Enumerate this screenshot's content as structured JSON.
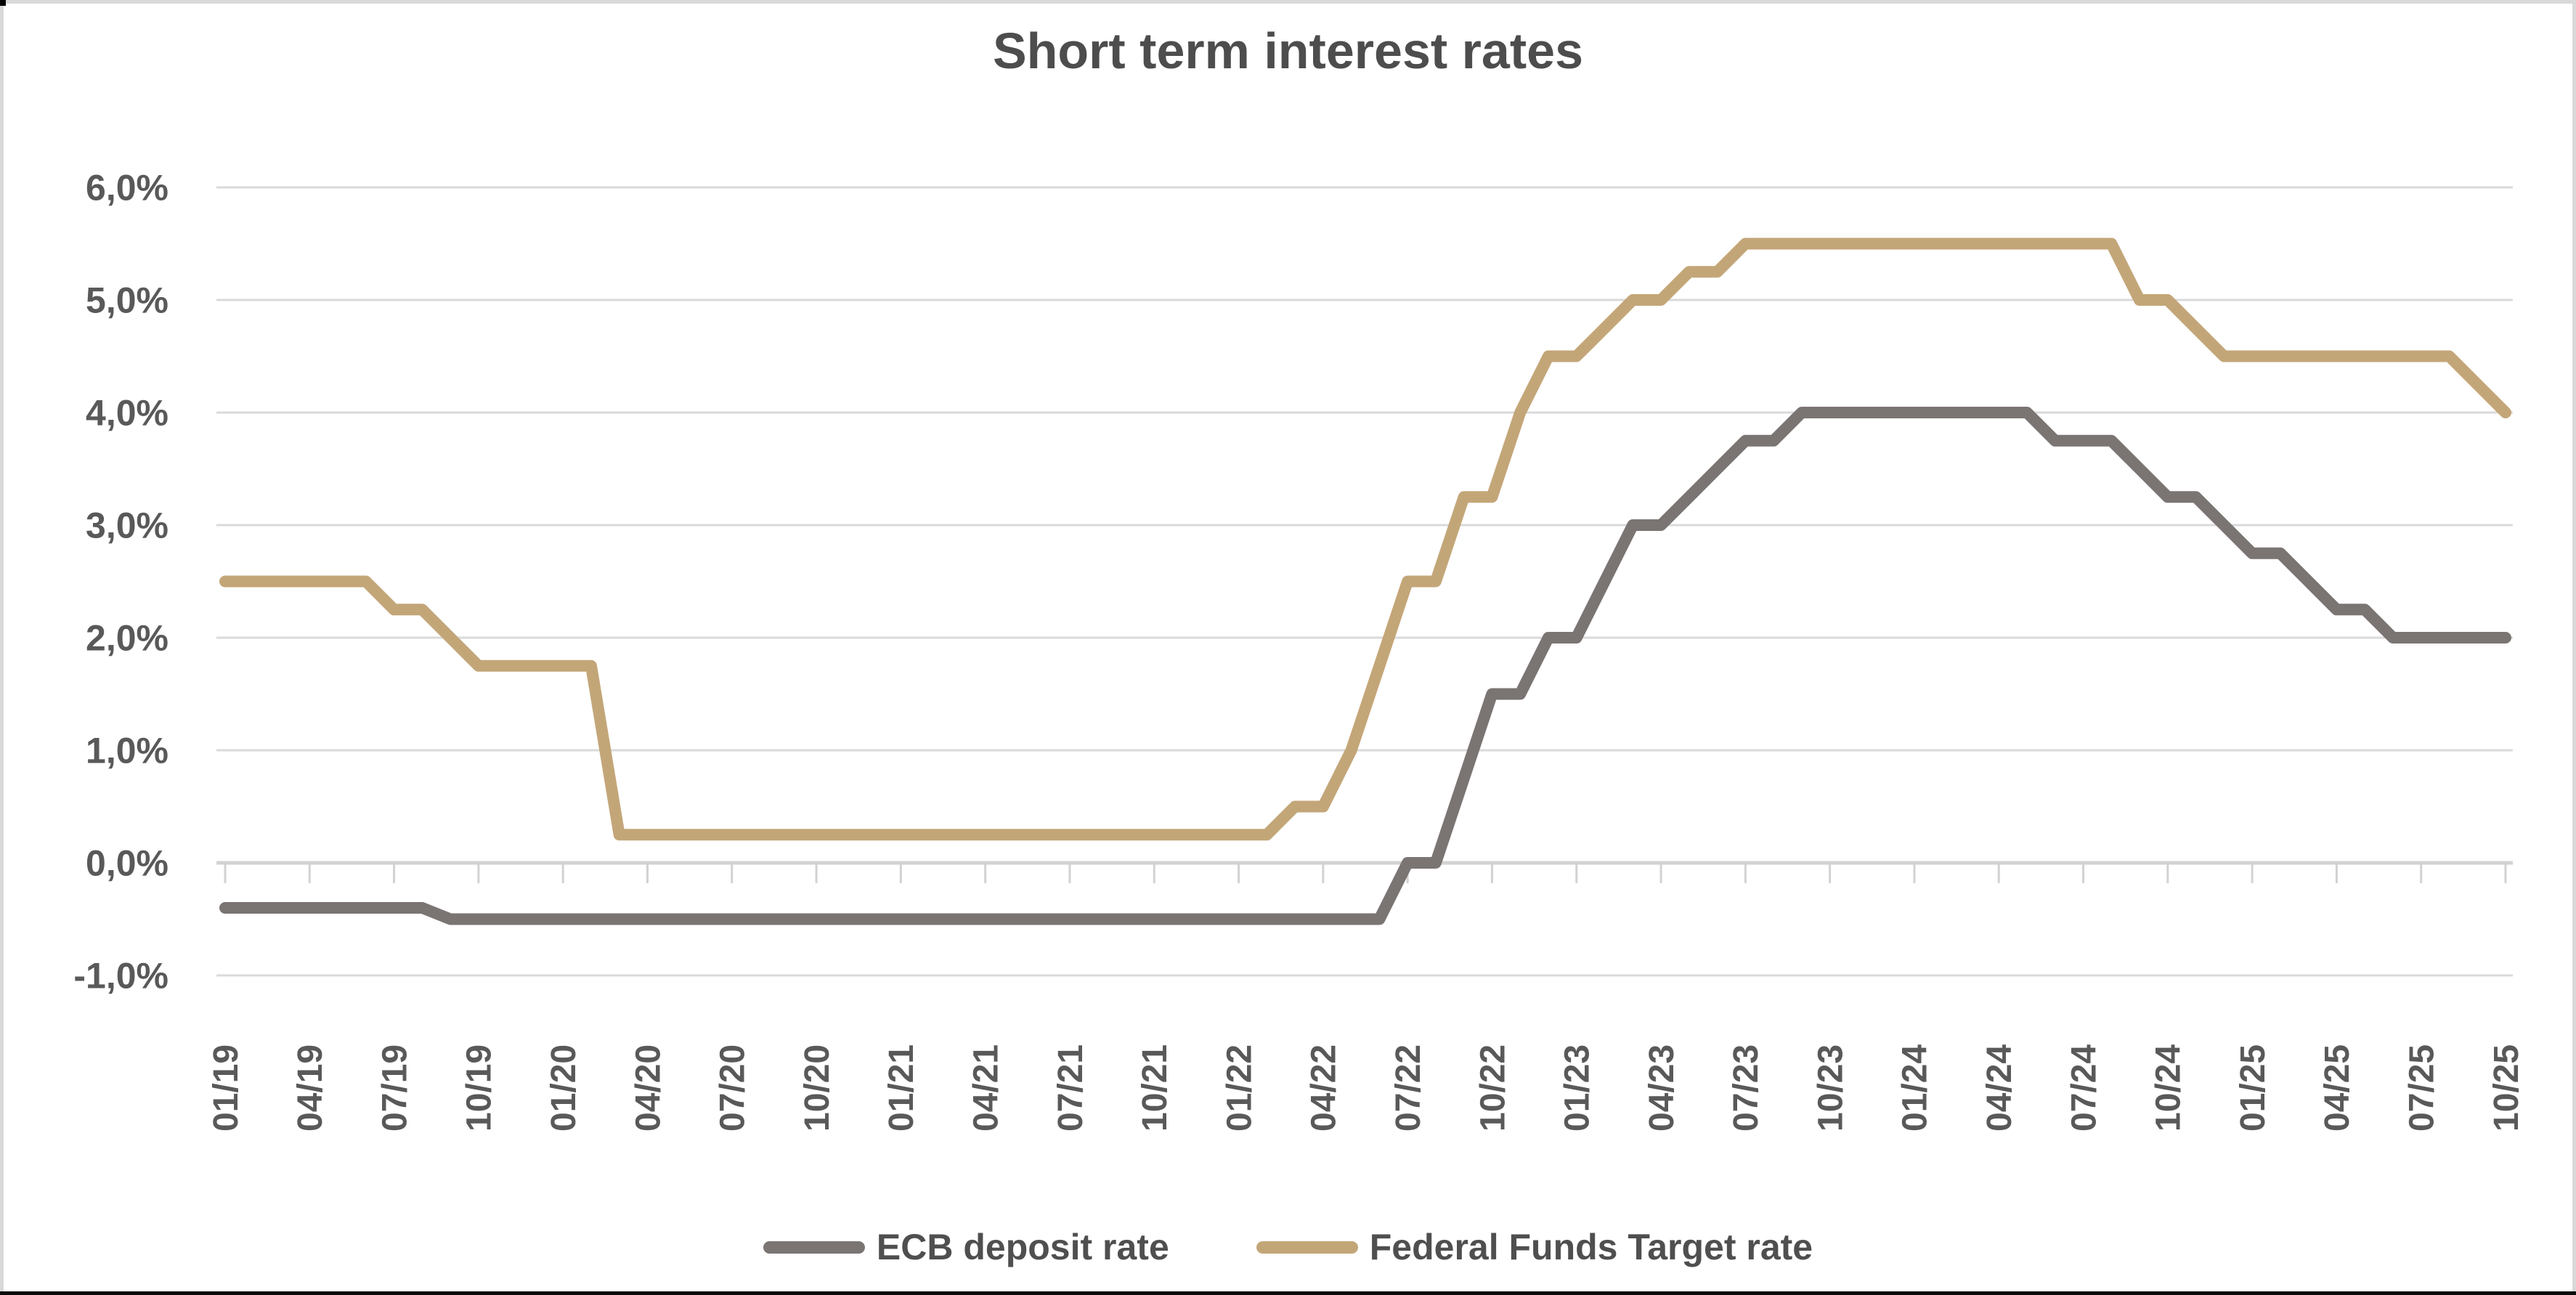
{
  "title": "Short term interest rates",
  "colors": {
    "ecb_line": "#7a7473",
    "fed_line": "#c3a678",
    "gridline": "#dadada",
    "axis_line": "#d2d2d2",
    "axis_text": "#595959",
    "title_text": "#4d4d4d",
    "border": "#d9d9d9"
  },
  "y_axis": {
    "labels": [
      "6,0%",
      "5,0%",
      "4,0%",
      "3,0%",
      "2,0%",
      "1,0%",
      "0,0%",
      "-1,0%"
    ],
    "values": [
      6,
      5,
      4,
      3,
      2,
      1,
      0,
      -1
    ]
  },
  "legend": {
    "items": [
      {
        "label": "ECB deposit rate",
        "series": "ecb"
      },
      {
        "label": "Federal Funds Target rate",
        "series": "fed"
      }
    ]
  },
  "chart_data": {
    "type": "line",
    "title": "Short term interest rates",
    "xlabel": "",
    "ylabel": "",
    "ylim": [
      -1,
      6
    ],
    "grid": true,
    "legend_position": "bottom",
    "x_start": "01/19",
    "x_end": "10/25",
    "x_step_months": 1,
    "x_tick_step_months": 3,
    "x_tick_labels": [
      "01/19",
      "04/19",
      "07/19",
      "10/19",
      "01/20",
      "04/20",
      "07/20",
      "10/20",
      "01/21",
      "04/21",
      "07/21",
      "10/21",
      "01/22",
      "04/22",
      "07/22",
      "10/22",
      "01/23",
      "04/23",
      "07/23",
      "10/23",
      "01/24",
      "04/24",
      "07/24",
      "10/24",
      "01/25",
      "04/25",
      "07/25",
      "10/25"
    ],
    "series": [
      {
        "name": "ECB deposit rate",
        "color": "#7a7473",
        "values": [
          -0.4,
          -0.4,
          -0.4,
          -0.4,
          -0.4,
          -0.4,
          -0.4,
          -0.4,
          -0.5,
          -0.5,
          -0.5,
          -0.5,
          -0.5,
          -0.5,
          -0.5,
          -0.5,
          -0.5,
          -0.5,
          -0.5,
          -0.5,
          -0.5,
          -0.5,
          -0.5,
          -0.5,
          -0.5,
          -0.5,
          -0.5,
          -0.5,
          -0.5,
          -0.5,
          -0.5,
          -0.5,
          -0.5,
          -0.5,
          -0.5,
          -0.5,
          -0.5,
          -0.5,
          -0.5,
          -0.5,
          -0.5,
          -0.5,
          0.0,
          0.0,
          0.75,
          1.5,
          1.5,
          2.0,
          2.0,
          2.5,
          3.0,
          3.0,
          3.25,
          3.5,
          3.75,
          3.75,
          4.0,
          4.0,
          4.0,
          4.0,
          4.0,
          4.0,
          4.0,
          4.0,
          4.0,
          3.75,
          3.75,
          3.75,
          3.5,
          3.25,
          3.25,
          3.0,
          2.75,
          2.75,
          2.5,
          2.25,
          2.25,
          2.0,
          2.0,
          2.0,
          2.0,
          2.0
        ]
      },
      {
        "name": "Federal Funds Target rate",
        "color": "#c3a678",
        "values": [
          2.5,
          2.5,
          2.5,
          2.5,
          2.5,
          2.5,
          2.25,
          2.25,
          2.0,
          1.75,
          1.75,
          1.75,
          1.75,
          1.75,
          0.25,
          0.25,
          0.25,
          0.25,
          0.25,
          0.25,
          0.25,
          0.25,
          0.25,
          0.25,
          0.25,
          0.25,
          0.25,
          0.25,
          0.25,
          0.25,
          0.25,
          0.25,
          0.25,
          0.25,
          0.25,
          0.25,
          0.25,
          0.25,
          0.5,
          0.5,
          1.0,
          1.75,
          2.5,
          2.5,
          3.25,
          3.25,
          4.0,
          4.5,
          4.5,
          4.75,
          5.0,
          5.0,
          5.25,
          5.25,
          5.5,
          5.5,
          5.5,
          5.5,
          5.5,
          5.5,
          5.5,
          5.5,
          5.5,
          5.5,
          5.5,
          5.5,
          5.5,
          5.5,
          5.0,
          5.0,
          4.75,
          4.5,
          4.5,
          4.5,
          4.5,
          4.5,
          4.5,
          4.5,
          4.5,
          4.5,
          4.25,
          4.0
        ]
      }
    ]
  }
}
